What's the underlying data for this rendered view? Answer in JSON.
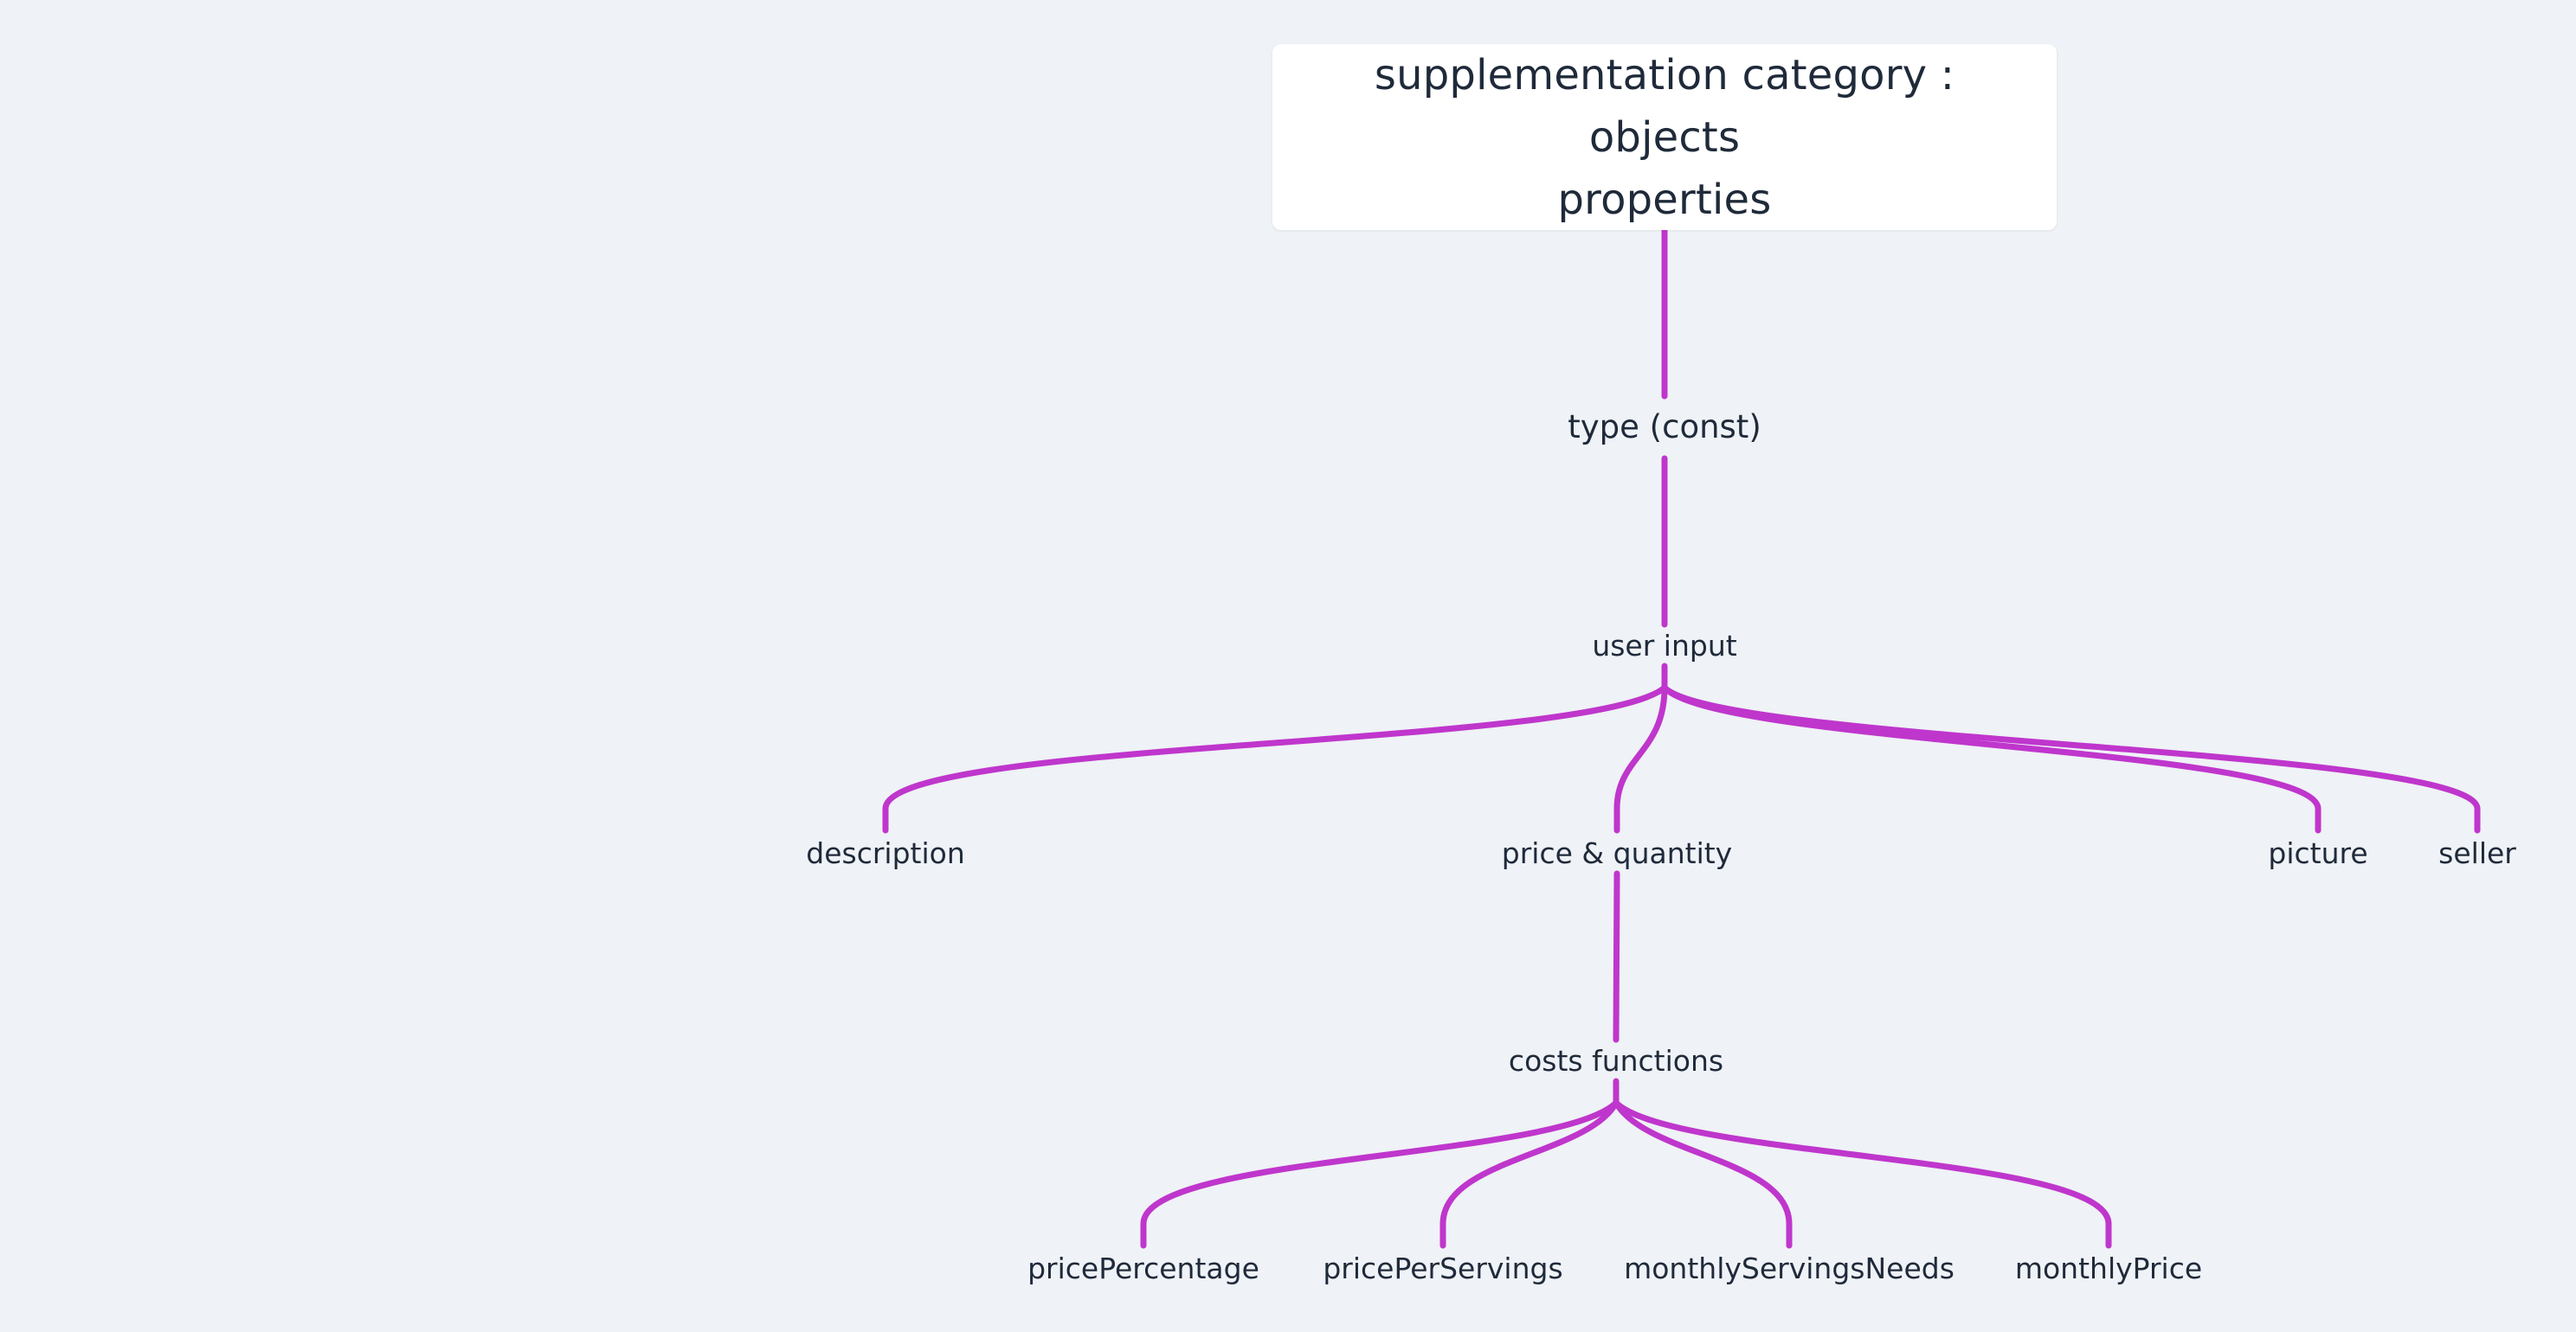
{
  "diagram": {
    "root": {
      "line1": "supplementation category : objects",
      "line2": "properties"
    },
    "nodes": {
      "type_const": "type (const)",
      "user_input": "user input",
      "description": "description",
      "price_quantity": "price & quantity",
      "picture": "picture",
      "seller": "seller",
      "costs_functions": "costs functions",
      "price_percentage": "pricePercentage",
      "price_per_servings": "pricePerServings",
      "monthly_servings_needs": "monthlyServingsNeeds",
      "monthly_price": "monthlyPrice"
    },
    "colors": {
      "background": "#eff2f6",
      "edge": "#bf36cc",
      "text": "#1f2a3a",
      "root_fill": "#ffffff"
    }
  }
}
